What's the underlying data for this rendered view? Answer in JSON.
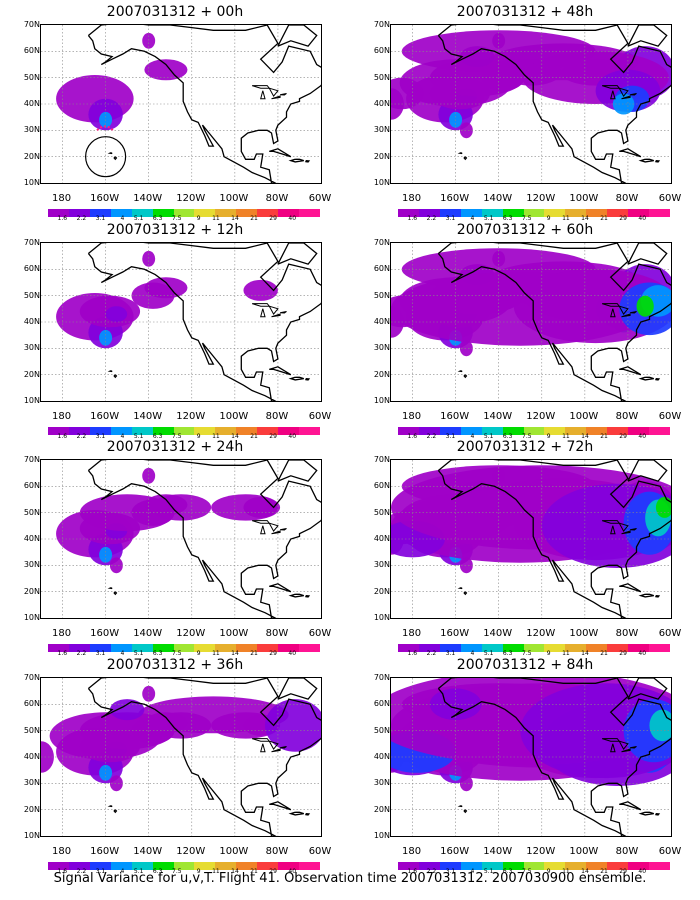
{
  "panels": [
    {
      "title": "2007031312 + 00h",
      "stage": 0,
      "hurricane_circle": true
    },
    {
      "title": "2007031312 + 48h",
      "stage": 4,
      "hurricane_circle": false
    },
    {
      "title": "2007031312 + 12h",
      "stage": 1,
      "hurricane_circle": false
    },
    {
      "title": "2007031312 + 60h",
      "stage": 5,
      "hurricane_circle": false
    },
    {
      "title": "2007031312 + 24h",
      "stage": 2,
      "hurricane_circle": false
    },
    {
      "title": "2007031312 + 72h",
      "stage": 6,
      "hurricane_circle": false
    },
    {
      "title": "2007031312 + 36h",
      "stage": 3,
      "hurricane_circle": false
    },
    {
      "title": "2007031312 + 84h",
      "stage": 7,
      "hurricane_circle": false
    }
  ],
  "lat_labels": [
    "70N",
    "60N",
    "50N",
    "40N",
    "30N",
    "20N",
    "10N"
  ],
  "lon_labels": [
    "180",
    "160W",
    "140W",
    "120W",
    "100W",
    "80W",
    "60W"
  ],
  "colorbar_labels": [
    "1.6",
    "2.2",
    "3.1",
    "4",
    "5.1",
    "6.3",
    "7.5",
    "9",
    "11",
    "14",
    "21",
    "29",
    "40"
  ],
  "colorbar_colors": [
    "#a000c8",
    "#8200dc",
    "#1e3cff",
    "#0096ff",
    "#00c8c8",
    "#00dc00",
    "#a0e632",
    "#e6dc32",
    "#e6af2d",
    "#f08228",
    "#fa3c3c",
    "#f00082",
    "#ff1493"
  ],
  "caption": "Signal Variance for u,v,T. Flight 41. Observation time 2007031312. 2007030900 ensemble."
}
